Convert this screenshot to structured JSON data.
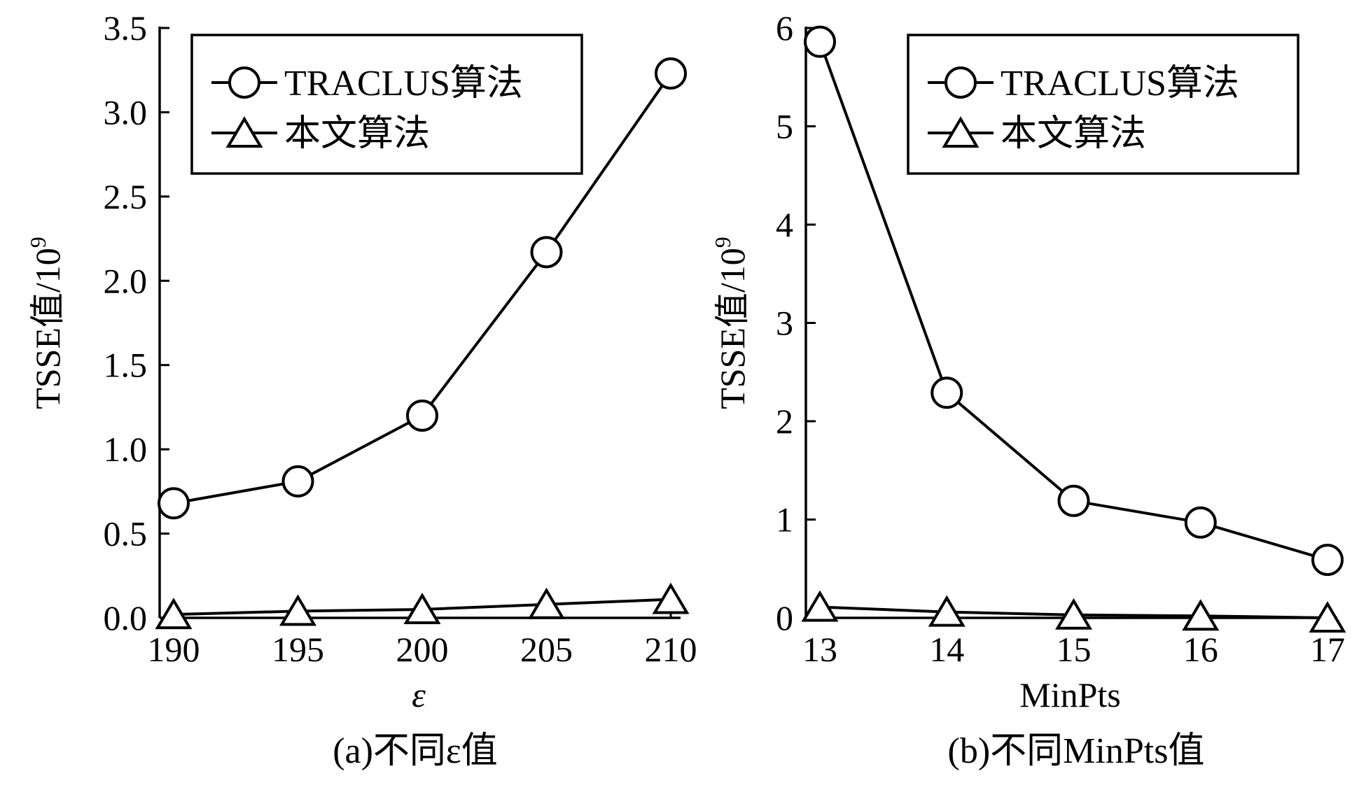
{
  "chart_data": [
    {
      "type": "line",
      "caption": "(a)不同ε值",
      "xlabel": "ε",
      "ylabel": "TSSE值/10",
      "ylabel_sup": "9",
      "x": [
        190,
        195,
        200,
        205,
        210
      ],
      "x_tick_labels": [
        "190",
        "195",
        "200",
        "205",
        "210"
      ],
      "ylim": [
        0,
        3.5
      ],
      "y_ticks": [
        0.0,
        0.5,
        1.0,
        1.5,
        2.0,
        2.5,
        3.0,
        3.5
      ],
      "y_tick_labels": [
        "0.0",
        "0.5",
        "1.0",
        "1.5",
        "2.0",
        "2.5",
        "3.0",
        "3.5"
      ],
      "legend_position": "top-right",
      "series": [
        {
          "name": "TRACLUS算法",
          "marker": "circle",
          "values": [
            0.68,
            0.81,
            1.2,
            2.17,
            3.23
          ]
        },
        {
          "name": "本文算法",
          "marker": "triangle",
          "values": [
            0.02,
            0.04,
            0.05,
            0.08,
            0.11
          ]
        }
      ]
    },
    {
      "type": "line",
      "caption": "(b)不同MinPts值",
      "xlabel": "MinPts",
      "ylabel": "TSSE值/10",
      "ylabel_sup": "9",
      "x": [
        13,
        14,
        15,
        16,
        17
      ],
      "x_tick_labels": [
        "13",
        "14",
        "15",
        "16",
        "17"
      ],
      "ylim": [
        0,
        6
      ],
      "y_ticks": [
        0,
        1,
        2,
        3,
        4,
        5,
        6
      ],
      "y_tick_labels": [
        "0",
        "1",
        "2",
        "3",
        "4",
        "5",
        "6"
      ],
      "legend_position": "top-right",
      "series": [
        {
          "name": "TRACLUS算法",
          "marker": "circle",
          "values": [
            5.86,
            2.29,
            1.19,
            0.97,
            0.59
          ]
        },
        {
          "name": "本文算法",
          "marker": "triangle",
          "values": [
            0.11,
            0.06,
            0.03,
            0.02,
            0.0
          ]
        }
      ]
    }
  ],
  "colors": {
    "line": "#000000",
    "background": "#ffffff"
  }
}
